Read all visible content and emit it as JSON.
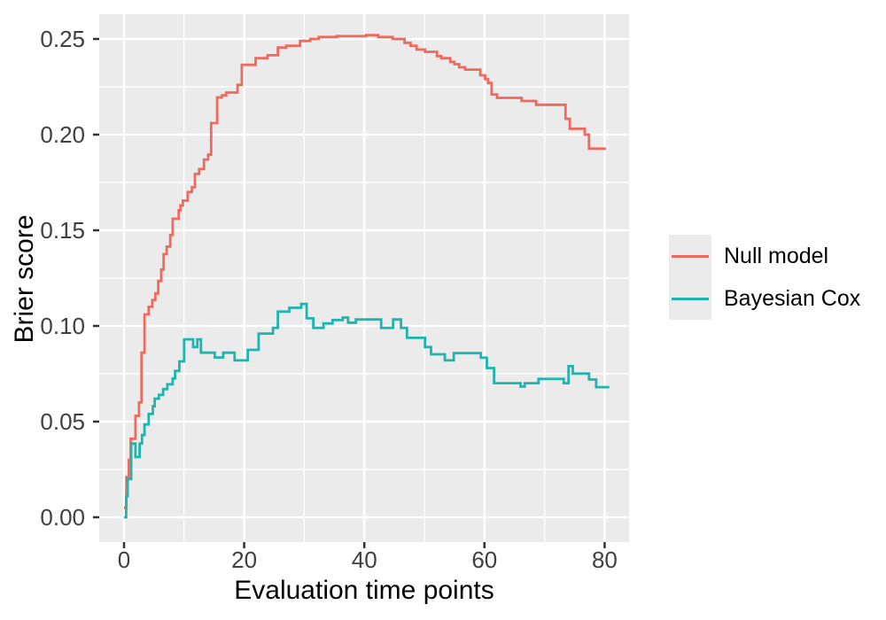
{
  "chart_data": {
    "type": "line",
    "subtype": "step-post",
    "title": "",
    "xlabel": "Evaluation time points",
    "ylabel": "Brier score",
    "xlim": [
      -4.1,
      84.1
    ],
    "ylim": [
      -0.013,
      0.263
    ],
    "grid": true,
    "legend_position": "right",
    "panel_background": "#EBEBEB",
    "grid_color": "#FFFFFF",
    "tick_color": "#333333",
    "tick_label_color": "#404040",
    "axis_title_color": "#000000",
    "x_ticks": [
      0,
      20,
      40,
      60,
      80
    ],
    "x_tick_labels": [
      "0",
      "20",
      "40",
      "60",
      "80"
    ],
    "x_minor_ticks": [
      10,
      30,
      50,
      70
    ],
    "y_ticks": [
      0,
      0.05,
      0.1,
      0.15,
      0.2,
      0.25
    ],
    "y_tick_labels": [
      "0.00",
      "0.05",
      "0.10",
      "0.15",
      "0.20",
      "0.25"
    ],
    "y_minor_ticks": [
      0.025,
      0.075,
      0.125,
      0.175,
      0.225
    ],
    "series": [
      {
        "name": "Null model",
        "color": "#F0695F",
        "points": [
          [
            0,
            0.005
          ],
          [
            0.4,
            0.021
          ],
          [
            0.8,
            0.03
          ],
          [
            1.1,
            0.041
          ],
          [
            1.9,
            0.053
          ],
          [
            2.5,
            0.06
          ],
          [
            2.9,
            0.086
          ],
          [
            3.4,
            0.106
          ],
          [
            4.1,
            0.11
          ],
          [
            4.7,
            0.1135
          ],
          [
            5.2,
            0.117
          ],
          [
            5.7,
            0.1235
          ],
          [
            6.2,
            0.1295
          ],
          [
            6.6,
            0.1375
          ],
          [
            7.1,
            0.1415
          ],
          [
            7.7,
            0.1475
          ],
          [
            8.1,
            0.156
          ],
          [
            9.1,
            0.1605
          ],
          [
            9.4,
            0.163
          ],
          [
            9.8,
            0.1655
          ],
          [
            10.6,
            0.17
          ],
          [
            11.3,
            0.1725
          ],
          [
            11.8,
            0.1795
          ],
          [
            12.5,
            0.182
          ],
          [
            13.3,
            0.187
          ],
          [
            14,
            0.1895
          ],
          [
            14.5,
            0.206
          ],
          [
            15.5,
            0.2195
          ],
          [
            16.3,
            0.2205
          ],
          [
            17,
            0.222
          ],
          [
            18.9,
            0.226
          ],
          [
            19.6,
            0.2365
          ],
          [
            21.9,
            0.24
          ],
          [
            23.9,
            0.2415
          ],
          [
            25.6,
            0.2455
          ],
          [
            27,
            0.2465
          ],
          [
            29.3,
            0.249
          ],
          [
            31,
            0.25
          ],
          [
            32.4,
            0.251
          ],
          [
            35.4,
            0.2515
          ],
          [
            40.3,
            0.252
          ],
          [
            42.3,
            0.251
          ],
          [
            44.7,
            0.25
          ],
          [
            46.7,
            0.248
          ],
          [
            47.7,
            0.2465
          ],
          [
            48.7,
            0.2445
          ],
          [
            50.1,
            0.2433
          ],
          [
            52.1,
            0.241
          ],
          [
            52.8,
            0.24
          ],
          [
            54.3,
            0.238
          ],
          [
            55,
            0.2368
          ],
          [
            55.8,
            0.2352
          ],
          [
            56.8,
            0.234
          ],
          [
            59.3,
            0.231
          ],
          [
            60.1,
            0.229
          ],
          [
            60.6,
            0.227
          ],
          [
            61.2,
            0.221
          ],
          [
            62.1,
            0.2192
          ],
          [
            66.2,
            0.2176
          ],
          [
            68.6,
            0.2156
          ],
          [
            73.5,
            0.2083
          ],
          [
            74.2,
            0.2031
          ],
          [
            76.7,
            0.2
          ],
          [
            77.4,
            0.1927
          ],
          [
            80.2,
            0.1927
          ]
        ]
      },
      {
        "name": "Bayesian Cox",
        "color": "#1FB5AF",
        "points": [
          [
            0,
            0
          ],
          [
            0.35,
            0.011
          ],
          [
            0.6,
            0.02
          ],
          [
            1.2,
            0.0385
          ],
          [
            1.9,
            0.0315
          ],
          [
            2.6,
            0.0385
          ],
          [
            3,
            0.043
          ],
          [
            3.4,
            0.0485
          ],
          [
            4.1,
            0.054
          ],
          [
            4.8,
            0.058
          ],
          [
            5.1,
            0.062
          ],
          [
            5.8,
            0.064
          ],
          [
            6.5,
            0.067
          ],
          [
            7.2,
            0.0695
          ],
          [
            8.1,
            0.0725
          ],
          [
            8.5,
            0.0765
          ],
          [
            9.2,
            0.0815
          ],
          [
            10,
            0.093
          ],
          [
            11.5,
            0.089
          ],
          [
            12.2,
            0.093
          ],
          [
            12.8,
            0.086
          ],
          [
            15.1,
            0.0835
          ],
          [
            16.5,
            0.086
          ],
          [
            18.4,
            0.082
          ],
          [
            20.6,
            0.0875
          ],
          [
            22.4,
            0.096
          ],
          [
            24.8,
            0.099
          ],
          [
            25.6,
            0.1075
          ],
          [
            27.5,
            0.1095
          ],
          [
            29.5,
            0.1115
          ],
          [
            30.4,
            0.104
          ],
          [
            31.5,
            0.099
          ],
          [
            33.2,
            0.1013
          ],
          [
            34.7,
            0.1031
          ],
          [
            36.4,
            0.1044
          ],
          [
            37.3,
            0.1017
          ],
          [
            38.6,
            0.1034
          ],
          [
            42.8,
            0.099
          ],
          [
            44.8,
            0.1034
          ],
          [
            46.1,
            0.099
          ],
          [
            47.1,
            0.0938
          ],
          [
            50.1,
            0.089
          ],
          [
            51.1,
            0.0852
          ],
          [
            53.4,
            0.082
          ],
          [
            54.9,
            0.0858
          ],
          [
            59.4,
            0.0834
          ],
          [
            60.4,
            0.078
          ],
          [
            61.6,
            0.0701
          ],
          [
            66,
            0.0683
          ],
          [
            66.7,
            0.0701
          ],
          [
            69,
            0.0723
          ],
          [
            73.2,
            0.0701
          ],
          [
            74,
            0.079
          ],
          [
            74.7,
            0.0751
          ],
          [
            77.4,
            0.072
          ],
          [
            78.6,
            0.068
          ],
          [
            80.8,
            0.068
          ]
        ]
      }
    ]
  },
  "legend": {
    "items": [
      {
        "label": "Null model",
        "color": "#F0695F"
      },
      {
        "label": "Bayesian Cox",
        "color": "#1FB5AF"
      }
    ]
  }
}
